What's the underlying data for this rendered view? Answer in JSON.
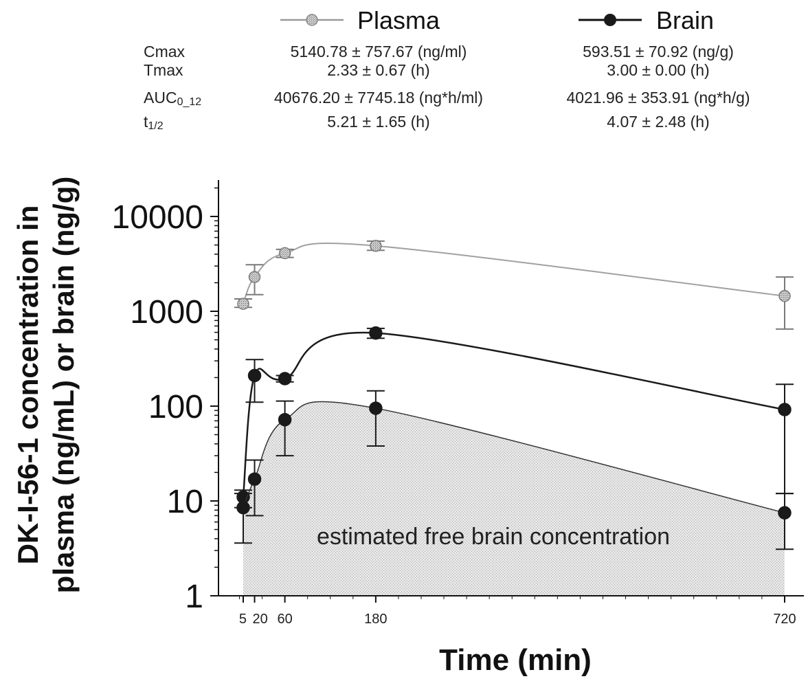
{
  "legend": {
    "plasma": "Plasma",
    "brain": "Brain"
  },
  "stats_table": {
    "row_labels": [
      "Cmax",
      "Tmax",
      "AUC0_12",
      "t1/2"
    ],
    "plasma": [
      "5140.78 ± 757.67 (ng/ml)",
      "2.33 ± 0.67 (h)",
      "40676.20 ± 7745.18 (ng*h/ml)",
      "5.21 ± 1.65 (h)"
    ],
    "brain": [
      "593.51 ± 70.92 (ng/g)",
      "3.00 ± 0.00 (h)",
      "4021.96 ± 353.91 (ng*h/g)",
      "4.07 ± 2.48 (h)"
    ]
  },
  "chart_data": {
    "type": "line",
    "title": "",
    "xlabel": "Time (min)",
    "ylabel_line1": "DK-I-56-1 concentration in",
    "ylabel_line2": "plasma (ng/mL) or brain (ng/g)",
    "yscale": "log",
    "ylim": [
      1,
      20000
    ],
    "xlim": [
      -20,
      740
    ],
    "x_ticks": [
      5,
      20,
      60,
      180,
      720
    ],
    "x_tick_labels": [
      "5",
      "20",
      "60",
      "180",
      "720"
    ],
    "y_ticks": [
      1,
      10,
      100,
      1000,
      10000
    ],
    "y_tick_labels": [
      "1",
      "10",
      "100",
      "1000",
      "10000"
    ],
    "series": [
      {
        "name": "Plasma",
        "color": "#9a9a9a",
        "x": [
          5,
          20,
          60,
          180,
          720
        ],
        "y": [
          1200,
          2300,
          4100,
          4900,
          1450
        ],
        "err_low": [
          1100,
          1500,
          3700,
          4400,
          650
        ],
        "err_high": [
          1350,
          3100,
          4500,
          5500,
          2300
        ]
      },
      {
        "name": "Brain",
        "color": "#1a1a1a",
        "x": [
          5,
          20,
          60,
          180,
          720
        ],
        "y": [
          11,
          210,
          195,
          590,
          92
        ],
        "err_low": [
          8.5,
          110,
          180,
          520,
          12
        ],
        "err_high": [
          13,
          310,
          210,
          660,
          170
        ]
      },
      {
        "name": "",
        "color": "#1a1a1a",
        "x": [
          5,
          20,
          60,
          180,
          720
        ],
        "y": [
          8.5,
          17,
          72,
          95,
          7.5
        ],
        "err_low": [
          3.6,
          7,
          30,
          38,
          3.1
        ],
        "err_high": [
          12,
          27,
          113,
          145,
          12
        ]
      }
    ],
    "annotation": "estimated free brain concentration"
  }
}
